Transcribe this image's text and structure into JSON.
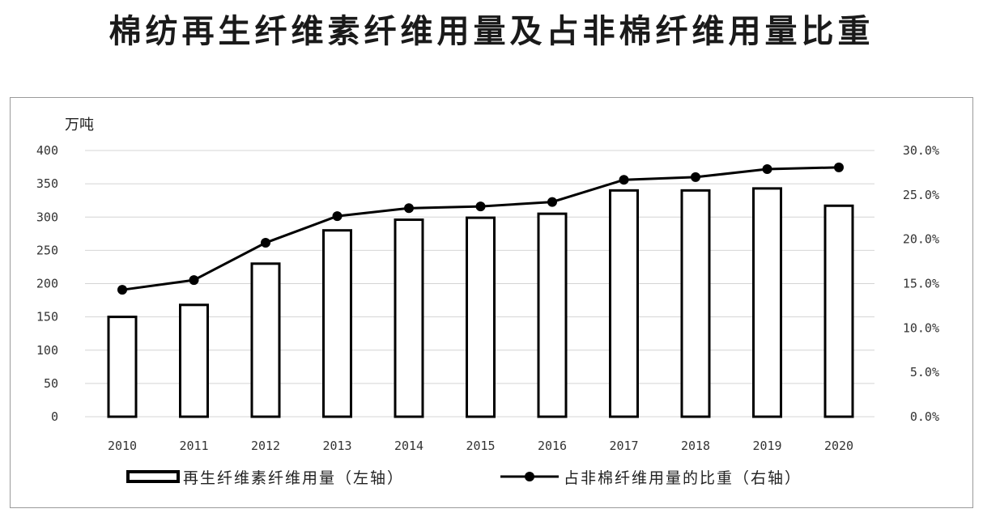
{
  "chart_data": {
    "type": "bar+line",
    "title": "棉纺再生纤维素纤维用量及占非棉纤维用量比重",
    "left_unit": "万吨",
    "categories": [
      "2010",
      "2011",
      "2012",
      "2013",
      "2014",
      "2015",
      "2016",
      "2017",
      "2018",
      "2019",
      "2020"
    ],
    "series": [
      {
        "name": "再生纤维素纤维用量（左轴）",
        "kind": "bar",
        "axis": "left",
        "values": [
          150,
          168,
          230,
          280,
          296,
          299,
          305,
          340,
          340,
          343,
          317
        ]
      },
      {
        "name": "占非棉纤维用量的比重（右轴）",
        "kind": "line",
        "axis": "right",
        "values": [
          14.3,
          15.4,
          19.6,
          22.6,
          23.5,
          23.7,
          24.2,
          26.7,
          27.0,
          27.9,
          28.1
        ]
      }
    ],
    "left_axis": {
      "ylim": [
        0,
        400
      ],
      "ticks": [
        "0",
        "50",
        "100",
        "150",
        "200",
        "250",
        "300",
        "350",
        "400"
      ]
    },
    "right_axis": {
      "ylim": [
        0,
        30
      ],
      "ticks": [
        "0.0%",
        "5.0%",
        "10.0%",
        "15.0%",
        "20.0%",
        "25.0%",
        "30.0%"
      ]
    },
    "grid": true,
    "legend": "bottom"
  }
}
